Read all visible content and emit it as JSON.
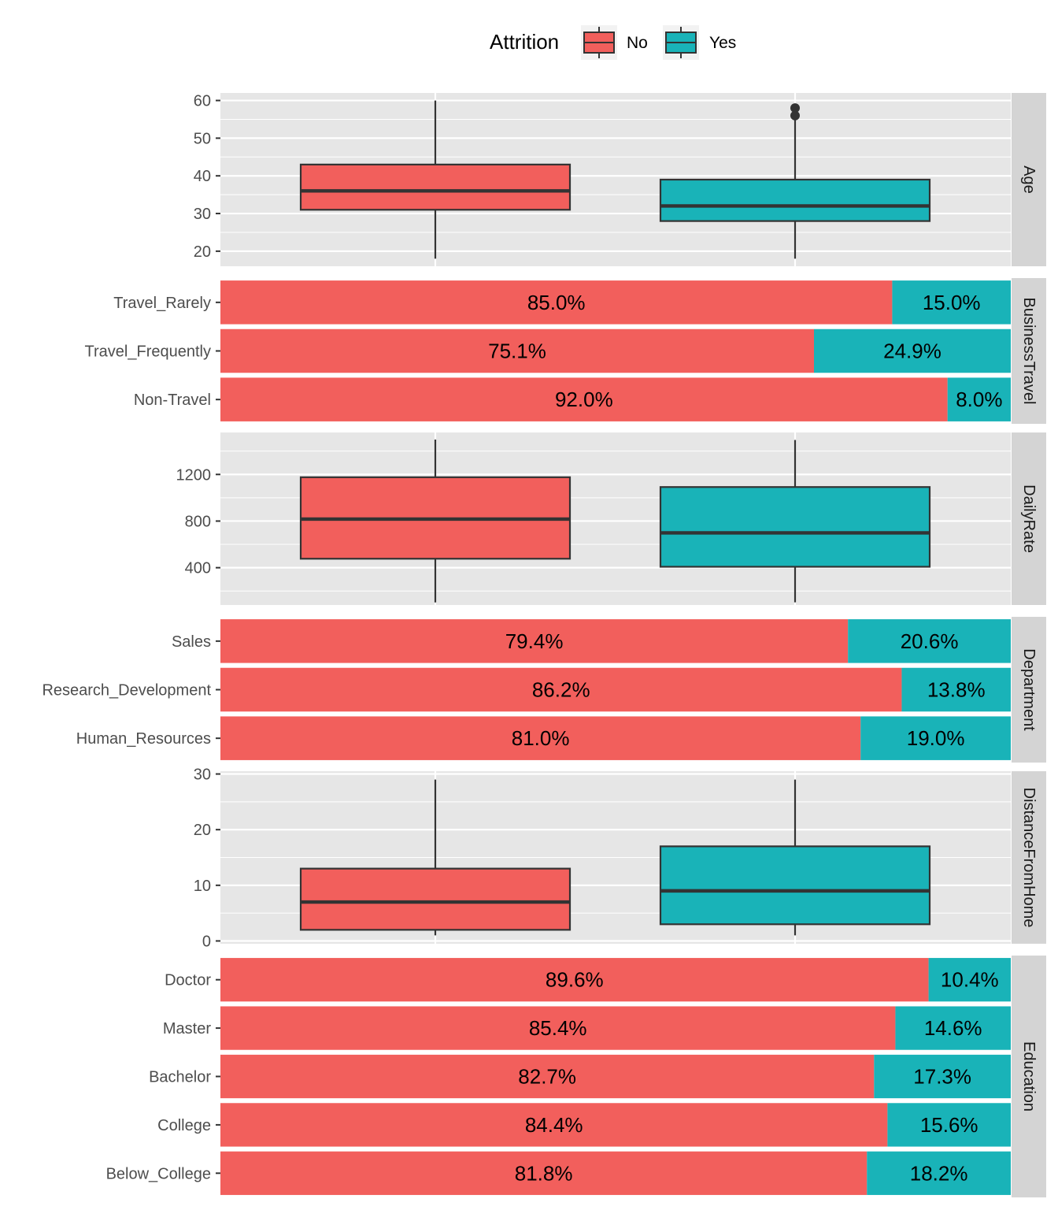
{
  "legend": {
    "title": "Attrition",
    "position": "top",
    "items": [
      {
        "label": "No",
        "color": "#F8766D"
      },
      {
        "label": "Yes",
        "color": "#00BFC4"
      }
    ]
  },
  "colors": {
    "no": "#F25F5C",
    "yes": "#19B3B8",
    "panel_bg": "#E6E6E6",
    "strip_bg": "#D4D4D4",
    "grid": "#FFFFFF",
    "box_line": "#333333"
  },
  "chart_data": [
    {
      "type": "boxplot",
      "facet": "Age",
      "ylim": [
        16,
        62
      ],
      "yticks": [
        20,
        30,
        40,
        50,
        60
      ],
      "grid": true,
      "groups": [
        {
          "name": "No",
          "min": 18,
          "q1": 31,
          "median": 36,
          "q3": 43,
          "max": 60,
          "outliers": []
        },
        {
          "name": "Yes",
          "min": 18,
          "q1": 28,
          "median": 32,
          "q3": 39,
          "max": 55,
          "outliers": [
            56,
            58
          ]
        }
      ]
    },
    {
      "type": "bar",
      "facet": "BusinessTravel",
      "categories": [
        "Travel_Rarely",
        "Travel_Frequently",
        "Non-Travel"
      ],
      "series": [
        {
          "name": "No",
          "values": [
            85.0,
            75.1,
            92.0
          ],
          "labels": [
            "85.0%",
            "75.1%",
            "92.0%"
          ]
        },
        {
          "name": "Yes",
          "values": [
            15.0,
            24.9,
            8.0
          ],
          "labels": [
            "15.0%",
            "24.9%",
            "8.0%"
          ]
        }
      ]
    },
    {
      "type": "boxplot",
      "facet": "DailyRate",
      "ylim": [
        80,
        1560
      ],
      "yticks": [
        400,
        800,
        1200
      ],
      "grid": true,
      "groups": [
        {
          "name": "No",
          "min": 102,
          "q1": 477,
          "median": 817,
          "q3": 1176,
          "max": 1499,
          "outliers": []
        },
        {
          "name": "Yes",
          "min": 103,
          "q1": 408,
          "median": 699,
          "q3": 1092,
          "max": 1496,
          "outliers": []
        }
      ]
    },
    {
      "type": "bar",
      "facet": "Department",
      "categories": [
        "Sales",
        "Research_Development",
        "Human_Resources"
      ],
      "series": [
        {
          "name": "No",
          "values": [
            79.4,
            86.2,
            81.0
          ],
          "labels": [
            "79.4%",
            "86.2%",
            "81.0%"
          ]
        },
        {
          "name": "Yes",
          "values": [
            20.6,
            13.8,
            19.0
          ],
          "labels": [
            "20.6%",
            "13.8%",
            "19.0%"
          ]
        }
      ]
    },
    {
      "type": "boxplot",
      "facet": "DistanceFromHome",
      "ylim": [
        -0.5,
        30.5
      ],
      "yticks": [
        0,
        10,
        20,
        30
      ],
      "grid": true,
      "groups": [
        {
          "name": "No",
          "min": 1,
          "q1": 2,
          "median": 7,
          "q3": 13,
          "max": 29,
          "outliers": []
        },
        {
          "name": "Yes",
          "min": 1,
          "q1": 3,
          "median": 9,
          "q3": 17,
          "max": 29,
          "outliers": []
        }
      ]
    },
    {
      "type": "bar",
      "facet": "Education",
      "categories": [
        "Doctor",
        "Master",
        "Bachelor",
        "College",
        "Below_College"
      ],
      "series": [
        {
          "name": "No",
          "values": [
            89.6,
            85.4,
            82.7,
            84.4,
            81.8
          ],
          "labels": [
            "89.6%",
            "85.4%",
            "82.7%",
            "84.4%",
            "81.8%"
          ]
        },
        {
          "name": "Yes",
          "values": [
            10.4,
            14.6,
            17.3,
            15.6,
            18.2
          ],
          "labels": [
            "10.4%",
            "14.6%",
            "17.3%",
            "15.6%",
            "18.2%"
          ]
        }
      ]
    }
  ]
}
